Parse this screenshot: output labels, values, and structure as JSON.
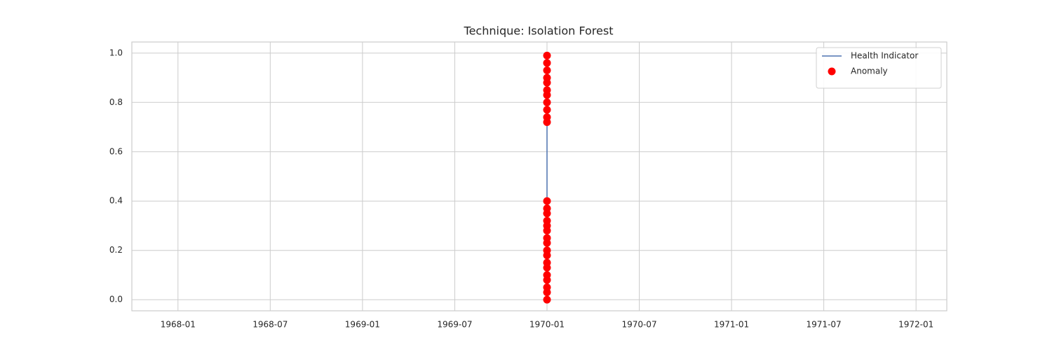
{
  "chart_data": {
    "type": "line",
    "title": "Technique: Isolation Forest",
    "xlim": [
      "1967-10",
      "1972-03"
    ],
    "xticks": [
      "1968-01",
      "1968-07",
      "1969-01",
      "1969-07",
      "1970-01",
      "1970-07",
      "1971-01",
      "1971-07",
      "1972-01"
    ],
    "ylim": [
      -0.045,
      1.045
    ],
    "yticks": [
      {
        "value": 0,
        "label": "0.0"
      },
      0.2,
      0.4,
      0.6,
      0.8,
      {
        "value": 1,
        "label": "1.0"
      }
    ],
    "grid": true,
    "legend": "upper right",
    "series": [
      {
        "name": "Health Indicator",
        "type": "line",
        "color": "#4c72b0",
        "x": [
          "1970-01",
          "1970-01",
          "1970-01",
          "1970-01",
          "1970-01",
          "1970-01",
          "1970-01",
          "1970-01",
          "1970-01",
          "1970-01",
          "1970-01",
          "1970-01",
          "1970-01",
          "1970-01",
          "1970-01",
          "1970-01",
          "1970-01",
          "1970-01",
          "1970-01",
          "1970-01"
        ],
        "values": [
          0.0,
          0.05,
          0.1,
          0.15,
          0.2,
          0.25,
          0.3,
          0.35,
          0.4,
          0.45,
          0.53,
          0.6,
          0.68,
          0.72,
          0.77,
          0.82,
          0.87,
          0.92,
          0.96,
          0.99
        ]
      },
      {
        "name": "Anomaly",
        "type": "scatter",
        "color": "#ff0000",
        "x": [
          "1970-01",
          "1970-01",
          "1970-01",
          "1970-01",
          "1970-01",
          "1970-01",
          "1970-01",
          "1970-01",
          "1970-01",
          "1970-01",
          "1970-01",
          "1970-01",
          "1970-01",
          "1970-01",
          "1970-01",
          "1970-01",
          "1970-01",
          "1970-01",
          "1970-01",
          "1970-01",
          "1970-01",
          "1970-01",
          "1970-01",
          "1970-01",
          "1970-01",
          "1970-01",
          "1970-01",
          "1970-01"
        ],
        "values": [
          0.0,
          0.03,
          0.05,
          0.08,
          0.1,
          0.13,
          0.15,
          0.18,
          0.2,
          0.23,
          0.25,
          0.28,
          0.3,
          0.32,
          0.35,
          0.37,
          0.4,
          0.72,
          0.74,
          0.77,
          0.8,
          0.83,
          0.85,
          0.88,
          0.9,
          0.93,
          0.96,
          0.99
        ]
      }
    ]
  }
}
